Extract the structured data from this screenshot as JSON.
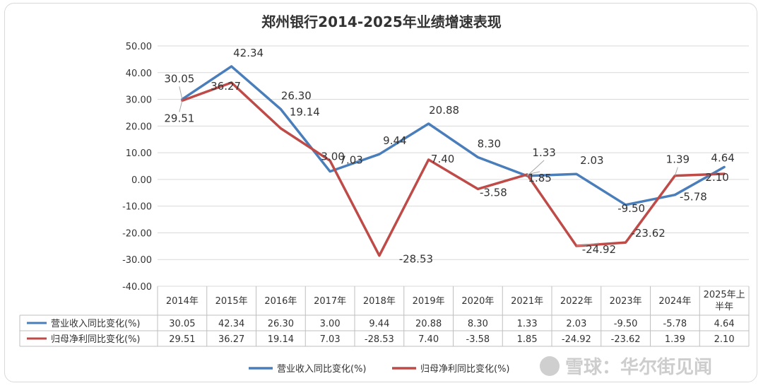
{
  "chart_data": {
    "type": "line",
    "title": "郑州银行2014-2025年业绩增速表现",
    "categories": [
      "2014年",
      "2015年",
      "2016年",
      "2017年",
      "2018年",
      "2019年",
      "2020年",
      "2021年",
      "2022年",
      "2023年",
      "2024年",
      "2025年上半年"
    ],
    "category_lines": [
      [
        "2014年"
      ],
      [
        "2015年"
      ],
      [
        "2016年"
      ],
      [
        "2017年"
      ],
      [
        "2018年"
      ],
      [
        "2019年"
      ],
      [
        "2020年"
      ],
      [
        "2021年"
      ],
      [
        "2022年"
      ],
      [
        "2023年"
      ],
      [
        "2024年"
      ],
      [
        "2025年上",
        "半年"
      ]
    ],
    "series": [
      {
        "name": "营业收入同比变化(%)",
        "color": "#4a7ebb",
        "values": [
          30.05,
          42.34,
          26.3,
          3.0,
          9.44,
          20.88,
          8.3,
          1.33,
          2.03,
          -9.5,
          -5.78,
          4.64
        ],
        "display": [
          "30.05",
          "42.34",
          "26.30",
          "3.00",
          "9.44",
          "20.88",
          "8.30",
          "1.33",
          "2.03",
          "-9.50",
          "-5.78",
          "4.64"
        ]
      },
      {
        "name": "归母净利同比变化(%)",
        "color": "#be4b48",
        "values": [
          29.51,
          36.27,
          19.14,
          7.03,
          -28.53,
          7.4,
          -3.58,
          1.85,
          -24.92,
          -23.62,
          1.39,
          2.1
        ],
        "display": [
          "29.51",
          "36.27",
          "19.14",
          "7.03",
          "-28.53",
          "7.40",
          "-3.58",
          "1.85",
          "-24.92",
          "-23.62",
          "1.39",
          "2.10"
        ]
      }
    ],
    "ylim": [
      -40,
      50
    ],
    "yticks": [
      "50.00",
      "40.00",
      "30.00",
      "20.00",
      "10.00",
      "0.00",
      "-10.00",
      "-20.00",
      "-30.00",
      "-40.00"
    ],
    "legend_position": "bottom",
    "data_table": true
  },
  "watermark": "雪球：华尔街见闻"
}
